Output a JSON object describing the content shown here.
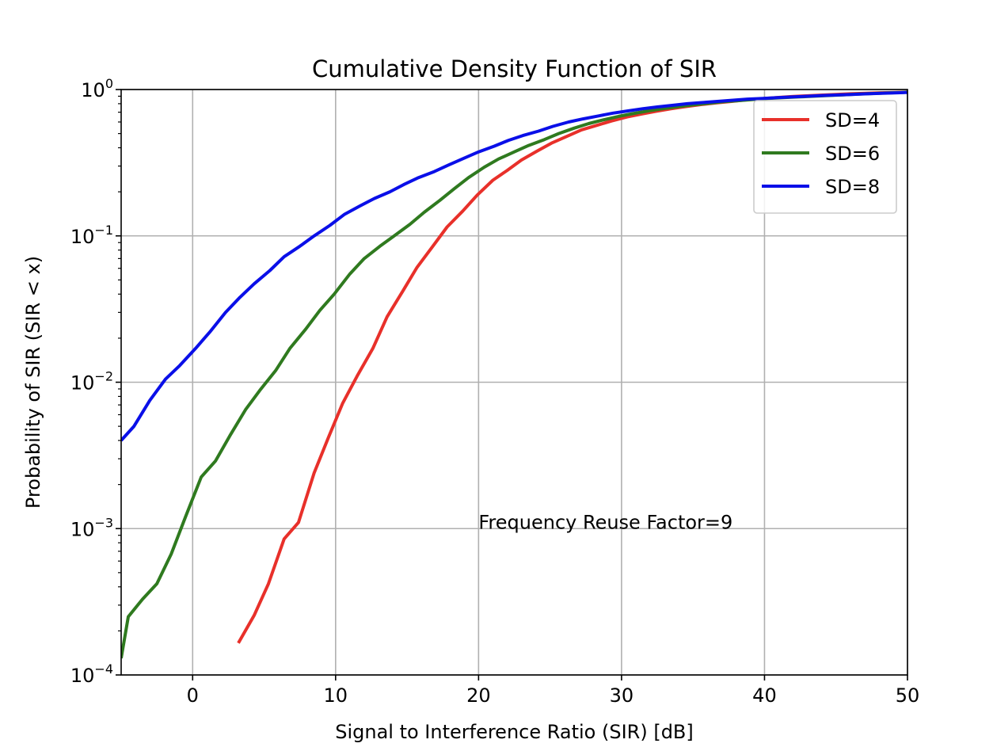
{
  "chart_data": {
    "type": "line",
    "title": "Cumulative Density Function of SIR",
    "xlabel": "Signal to Interference Ratio (SIR) [dB]",
    "ylabel": "Probability of SIR (SIR < x)",
    "xlim": [
      -5,
      50
    ],
    "ylim": [
      0.0001,
      1
    ],
    "yscale": "log",
    "grid": true,
    "legend_position": "top-right",
    "x_ticks": [
      0,
      10,
      20,
      30,
      40,
      50
    ],
    "x_tick_labels": [
      "0",
      "10",
      "20",
      "30",
      "40",
      "50"
    ],
    "y_ticks": [
      0.0001,
      0.001,
      0.01,
      0.1,
      1
    ],
    "y_tick_labels": [
      {
        "base": "10",
        "exp": "−4"
      },
      {
        "base": "10",
        "exp": "−3"
      },
      {
        "base": "10",
        "exp": "−2"
      },
      {
        "base": "10",
        "exp": "−1"
      },
      {
        "base": "10",
        "exp": "0"
      }
    ],
    "annotations": [
      {
        "text": "Frequency Reuse Factor=9",
        "x": 20,
        "y": 0.001
      }
    ],
    "series": [
      {
        "name": "SD=4",
        "color": "#e8302a",
        "x": [
          3.2,
          4.3,
          5.3,
          6.4,
          7.4,
          8.5,
          9.5,
          10.5,
          11.5,
          12.6,
          13.6,
          14.7,
          15.7,
          16.8,
          17.8,
          18.9,
          19.9,
          21.0,
          22.0,
          23.0,
          24.1,
          25.1,
          26.2,
          27.2,
          28.3,
          29.3,
          30.4,
          31.4,
          32.4,
          33.5,
          34.5,
          35.6,
          36.6,
          37.7,
          38.7,
          39.8,
          40.8,
          41.9,
          42.9,
          43.9,
          45.0,
          46.0,
          47.1,
          48.1,
          49.2,
          50.0
        ],
        "y": [
          0.000165,
          0.000255,
          0.00042,
          0.00085,
          0.0011,
          0.0024,
          0.0042,
          0.0072,
          0.011,
          0.017,
          0.028,
          0.042,
          0.061,
          0.085,
          0.115,
          0.148,
          0.19,
          0.24,
          0.28,
          0.33,
          0.38,
          0.43,
          0.48,
          0.53,
          0.57,
          0.61,
          0.65,
          0.68,
          0.71,
          0.74,
          0.765,
          0.79,
          0.81,
          0.83,
          0.85,
          0.865,
          0.88,
          0.895,
          0.905,
          0.915,
          0.925,
          0.935,
          0.942,
          0.95,
          0.955,
          0.96
        ]
      },
      {
        "name": "SD=6",
        "color": "#2f7a1f",
        "x": [
          -5.0,
          -4.5,
          -3.5,
          -2.5,
          -1.5,
          -0.5,
          0.6,
          1.6,
          2.6,
          3.7,
          4.7,
          5.8,
          6.8,
          7.9,
          8.9,
          9.9,
          11.0,
          12.0,
          13.1,
          14.1,
          15.2,
          16.2,
          17.3,
          18.3,
          19.3,
          20.4,
          21.4,
          22.5,
          23.5,
          24.6,
          25.6,
          26.7,
          27.7,
          28.7,
          29.8,
          30.8,
          31.9,
          32.9,
          34.0,
          35.0,
          36.1,
          37.1,
          38.2,
          39.2,
          40.2,
          41.3,
          42.3,
          43.4,
          44.4,
          45.5,
          46.5,
          47.6,
          48.6,
          49.6,
          50.0
        ],
        "y": [
          0.00013,
          0.00025,
          0.00033,
          0.00042,
          0.00067,
          0.0012,
          0.00225,
          0.0029,
          0.0043,
          0.0065,
          0.0088,
          0.012,
          0.017,
          0.023,
          0.031,
          0.04,
          0.055,
          0.07,
          0.085,
          0.1,
          0.12,
          0.145,
          0.175,
          0.21,
          0.25,
          0.295,
          0.335,
          0.375,
          0.415,
          0.455,
          0.5,
          0.545,
          0.585,
          0.62,
          0.655,
          0.685,
          0.715,
          0.74,
          0.765,
          0.785,
          0.805,
          0.825,
          0.84,
          0.855,
          0.87,
          0.88,
          0.89,
          0.9,
          0.91,
          0.92,
          0.93,
          0.94,
          0.948,
          0.955,
          0.96
        ]
      },
      {
        "name": "SD=8",
        "color": "#0a0fe8",
        "x": [
          -5.0,
          -4.1,
          -3.0,
          -1.9,
          -0.9,
          0.2,
          1.2,
          2.3,
          3.3,
          4.3,
          5.4,
          6.4,
          7.5,
          8.5,
          9.6,
          10.6,
          11.7,
          12.7,
          13.8,
          14.8,
          15.8,
          16.9,
          17.9,
          19.0,
          20.0,
          21.1,
          22.1,
          23.1,
          24.2,
          25.2,
          26.3,
          27.3,
          28.4,
          29.4,
          30.5,
          31.5,
          32.5,
          33.6,
          34.6,
          35.7,
          36.7,
          37.8,
          38.8,
          39.9,
          40.9,
          41.9,
          43.0,
          44.0,
          45.1,
          46.1,
          47.2,
          48.2,
          49.3,
          50.0
        ],
        "y": [
          0.004,
          0.005,
          0.0075,
          0.0105,
          0.013,
          0.017,
          0.022,
          0.03,
          0.038,
          0.047,
          0.058,
          0.072,
          0.085,
          0.1,
          0.118,
          0.14,
          0.16,
          0.18,
          0.2,
          0.225,
          0.25,
          0.275,
          0.305,
          0.34,
          0.375,
          0.41,
          0.45,
          0.485,
          0.52,
          0.56,
          0.6,
          0.63,
          0.66,
          0.69,
          0.715,
          0.74,
          0.76,
          0.78,
          0.8,
          0.815,
          0.83,
          0.845,
          0.86,
          0.87,
          0.88,
          0.89,
          0.9,
          0.91,
          0.918,
          0.926,
          0.935,
          0.942,
          0.95,
          0.955
        ]
      }
    ]
  }
}
